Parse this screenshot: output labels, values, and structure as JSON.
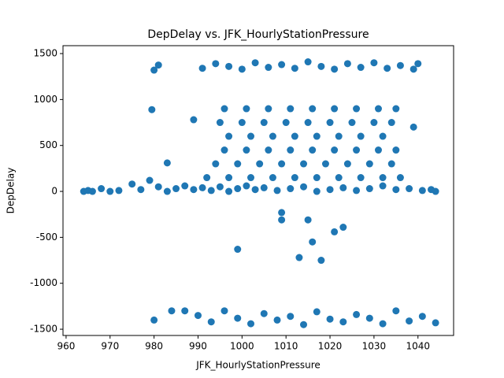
{
  "chart_data": {
    "type": "scatter",
    "title": "DepDelay vs. JFK_HourlyStationPressure",
    "x_label": "JFK_HourlyStationPressure",
    "y_label": "DepDelay",
    "color": "#1f77b4",
    "xlim": [
      959.3,
      1048.1
    ],
    "ylim": [
      -1568,
      1586
    ],
    "xticks": [
      960,
      970,
      980,
      990,
      1000,
      1010,
      1020,
      1030,
      1040
    ],
    "yticks": [
      -1500,
      -1000,
      -500,
      0,
      500,
      1000,
      1500
    ],
    "grid": false,
    "x": [
      964,
      965,
      966,
      968,
      970,
      972,
      975,
      977,
      979,
      981,
      983,
      985,
      987,
      989,
      991,
      993,
      995,
      997,
      999,
      1001,
      1003,
      1005,
      1008,
      1011,
      1014,
      1017,
      1020,
      1023,
      1026,
      1029,
      1032,
      1035,
      1038,
      1041,
      1043,
      1044,
      992,
      997,
      1002,
      1007,
      1012,
      1017,
      1022,
      1027,
      1032,
      1036,
      994,
      999,
      1004,
      1009,
      1014,
      1019,
      1024,
      1029,
      1034,
      996,
      1001,
      1006,
      1011,
      1016,
      1021,
      1026,
      1031,
      1035,
      997,
      1002,
      1007,
      1012,
      1017,
      1022,
      1027,
      1032,
      995,
      1000,
      1005,
      1010,
      1015,
      1020,
      1025,
      1030,
      1034,
      996,
      1001,
      1006,
      1011,
      1016,
      1021,
      1026,
      1031,
      1035,
      991,
      994,
      997,
      1000,
      1003,
      1006,
      1009,
      1012,
      1015,
      1018,
      1021,
      1024,
      1027,
      1030,
      1033,
      1036,
      1039,
      990,
      993,
      996,
      999,
      1002,
      1005,
      1008,
      1011,
      1014,
      1017,
      1020,
      1023,
      1026,
      1029,
      1032,
      1035,
      1038,
      1041,
      1044,
      980,
      981,
      979.5,
      983,
      980,
      984,
      987,
      999,
      1009,
      1009,
      1015,
      1021,
      1023,
      1016,
      1013,
      1018,
      1039,
      989,
      1040
    ],
    "values": [
      0,
      10,
      0,
      30,
      0,
      10,
      80,
      20,
      120,
      50,
      0,
      30,
      60,
      20,
      40,
      10,
      50,
      0,
      30,
      60,
      20,
      40,
      10,
      30,
      50,
      0,
      20,
      40,
      10,
      30,
      60,
      20,
      30,
      10,
      20,
      0,
      150,
      150,
      150,
      150,
      150,
      150,
      150,
      150,
      150,
      150,
      300,
      300,
      300,
      300,
      300,
      300,
      300,
      300,
      300,
      450,
      450,
      450,
      450,
      450,
      450,
      450,
      450,
      450,
      600,
      600,
      600,
      600,
      600,
      600,
      600,
      600,
      750,
      750,
      750,
      750,
      750,
      750,
      750,
      750,
      750,
      900,
      900,
      900,
      900,
      900,
      900,
      900,
      900,
      900,
      1340,
      1390,
      1360,
      1330,
      1400,
      1350,
      1380,
      1340,
      1410,
      1360,
      1330,
      1390,
      1350,
      1400,
      1340,
      1370,
      1330,
      -1350,
      -1420,
      -1300,
      -1380,
      -1440,
      -1330,
      -1400,
      -1360,
      -1450,
      -1310,
      -1390,
      -1420,
      -1340,
      -1380,
      -1440,
      -1300,
      -1410,
      -1360,
      -1430,
      1320,
      1375,
      890,
      310,
      -1400,
      -1300,
      -1300,
      -630,
      -230,
      -310,
      -310,
      -440,
      -390,
      -550,
      -720,
      -750,
      700,
      780,
      1390
    ]
  }
}
